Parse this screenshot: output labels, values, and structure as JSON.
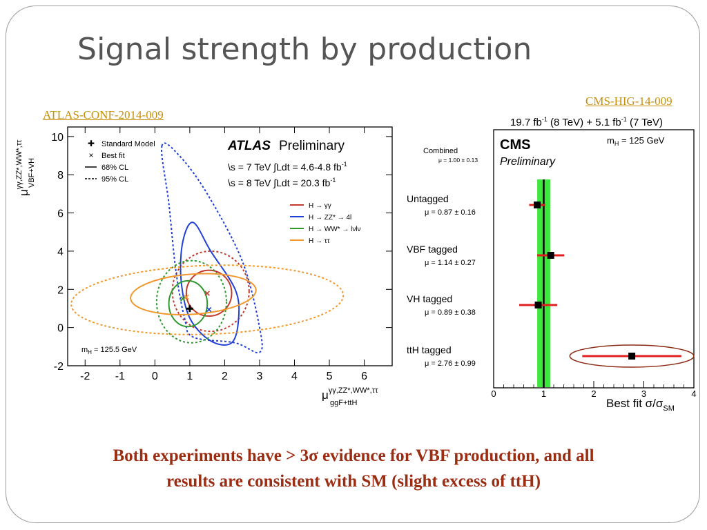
{
  "slide": {
    "title": "Signal strength by production",
    "atlas_link": "ATLAS-CONF-2014-009",
    "cms_link": "CMS-HIG-14-009",
    "conclusion_line1": "Both experiments have > 3σ evidence for VBF production, and all",
    "conclusion_line2": "results are consistent with SM (slight excess of ttH)"
  },
  "chart_data": [
    {
      "type": "scatter",
      "experiment": "ATLAS",
      "xlabel": "μ",
      "xlabel_sup": "γγ,ZZ*,WW*,ττ",
      "xlabel_sub": "ggF+ttH",
      "ylabel": "μ",
      "ylabel_sup": "γγ,ZZ*,WW*,ττ",
      "ylabel_sub": "VBF+VH",
      "xlim": [
        -2.5,
        6.8
      ],
      "ylim": [
        -2,
        10.5
      ],
      "xticks": [
        "-2",
        "-1",
        "0",
        "1",
        "2",
        "3",
        "4",
        "5",
        "6"
      ],
      "yticks": [
        "-2",
        "0",
        "2",
        "4",
        "6",
        "8",
        "10"
      ],
      "header_label": "ATLAS",
      "header_status": "Preliminary",
      "lumi_7": "\\s = 7 TeV  ∫Ldt = 4.6-4.8 fb",
      "lumi_8": "\\s = 8 TeV  ∫Ldt = 20.3 fb",
      "lumi_exp": "-1",
      "mass_label": "m",
      "mass_sub": "H",
      "mass_value": " = 125.5 GeV",
      "legend_markers": [
        {
          "symbol": "✚",
          "label": "Standard Model"
        },
        {
          "symbol": "×",
          "label": "Best fit"
        },
        {
          "symbol": "solid",
          "label": "68% CL"
        },
        {
          "symbol": "dashed",
          "label": "95% CL"
        }
      ],
      "standard_model": {
        "x": 1,
        "y": 1
      },
      "series": [
        {
          "name": "H → γγ",
          "color": "#c0392b",
          "best_fit": {
            "x": 1.5,
            "y": 1.8
          },
          "cl68": {
            "cx": 1.55,
            "cy": 1.8,
            "rx": 0.65,
            "ry": 1.2,
            "angle": 0
          },
          "cl95": {
            "cx": 1.6,
            "cy": 1.9,
            "rx": 1.1,
            "ry": 2.1,
            "angle": 0
          }
        },
        {
          "name": "H → ZZ* → 4l",
          "color": "#1f3fd6",
          "best_fit": {
            "x": 1.55,
            "y": 0.95
          },
          "cl68_poly": [
            [
              0.8,
              4.5
            ],
            [
              1.1,
              5.5
            ],
            [
              1.6,
              4
            ],
            [
              2.3,
              2
            ],
            [
              2.4,
              0.5
            ],
            [
              2.2,
              -0.8
            ],
            [
              1.6,
              -0.7
            ],
            [
              1.0,
              0.5
            ],
            [
              0.75,
              2.5
            ]
          ],
          "cl95_poly": [
            [
              0.2,
              9.5
            ],
            [
              0.7,
              9
            ],
            [
              1.5,
              7
            ],
            [
              2.5,
              3.5
            ],
            [
              3.0,
              0
            ],
            [
              3.0,
              -1.3
            ],
            [
              2.3,
              -0.8
            ],
            [
              1.1,
              -0.5
            ],
            [
              0.85,
              0.5
            ],
            [
              0.6,
              3
            ],
            [
              0.4,
              6.5
            ]
          ]
        },
        {
          "name": "H → WW* → lνlν",
          "color": "#2e9a2e",
          "best_fit": {
            "x": 0.8,
            "y": 1.5
          },
          "cl68": {
            "cx": 0.95,
            "cy": 1.25,
            "rx": 0.55,
            "ry": 1.2,
            "angle": 0
          },
          "cl95": {
            "cx": 1.05,
            "cy": 1.35,
            "rx": 1.0,
            "ry": 2.15,
            "angle": 0
          }
        },
        {
          "name": "H → ττ",
          "color": "#f0982e",
          "best_fit": {
            "x": 0.9,
            "y": 1.6
          },
          "cl68": {
            "cx": 1.1,
            "cy": 1.75,
            "rx": 1.8,
            "ry": 1.05,
            "angle": -4
          },
          "cl95": {
            "cx": 1.5,
            "cy": 1.45,
            "rx": 3.9,
            "ry": 1.8,
            "angle": -2
          }
        }
      ]
    },
    {
      "type": "scatter",
      "experiment": "CMS",
      "lumi_text": "19.7 fb(8 TeV) +  5.1 fb(7 TeV)",
      "lumi_part1": "19.7 fb",
      "lumi_part2": " (8 TeV) +  5.1 fb",
      "lumi_part3": " (7 TeV)",
      "lumi_exp": "-1",
      "header_label": "CMS",
      "header_status": "Preliminary",
      "mass_label": "m",
      "mass_sub": "H",
      "mass_value": " = 125 GeV",
      "xlabel": "Best fit σ/σ",
      "xlabel_sub": "SM",
      "xlim": [
        0,
        4
      ],
      "xticks": [
        "0",
        "1",
        "2",
        "3",
        "4"
      ],
      "combined": {
        "label": "Combined",
        "value_text": "μ = 1.00 ± 0.13",
        "mu": 1.0,
        "err": 0.13
      },
      "sm_line": 1,
      "categories": [
        {
          "label": "Untagged",
          "value_text": "μ = 0.87 ± 0.16",
          "mu": 0.87,
          "lo": 0.71,
          "hi": 1.03
        },
        {
          "label": "VBF tagged",
          "value_text": "μ = 1.14 ± 0.27",
          "mu": 1.14,
          "lo": 0.87,
          "hi": 1.41
        },
        {
          "label": "VH tagged",
          "value_text": "μ = 0.89 ± 0.38",
          "mu": 0.89,
          "lo": 0.51,
          "hi": 1.27
        },
        {
          "label": "ttH tagged",
          "value_text": "μ = 2.76 ± 0.99",
          "mu": 2.76,
          "lo": 1.77,
          "hi": 3.75
        }
      ],
      "band_color": "#3ee63e",
      "marker_color": "#000000",
      "error_color": "#e02020",
      "highlight_color": "#8b2a14",
      "highlight": "ttH tagged"
    }
  ]
}
